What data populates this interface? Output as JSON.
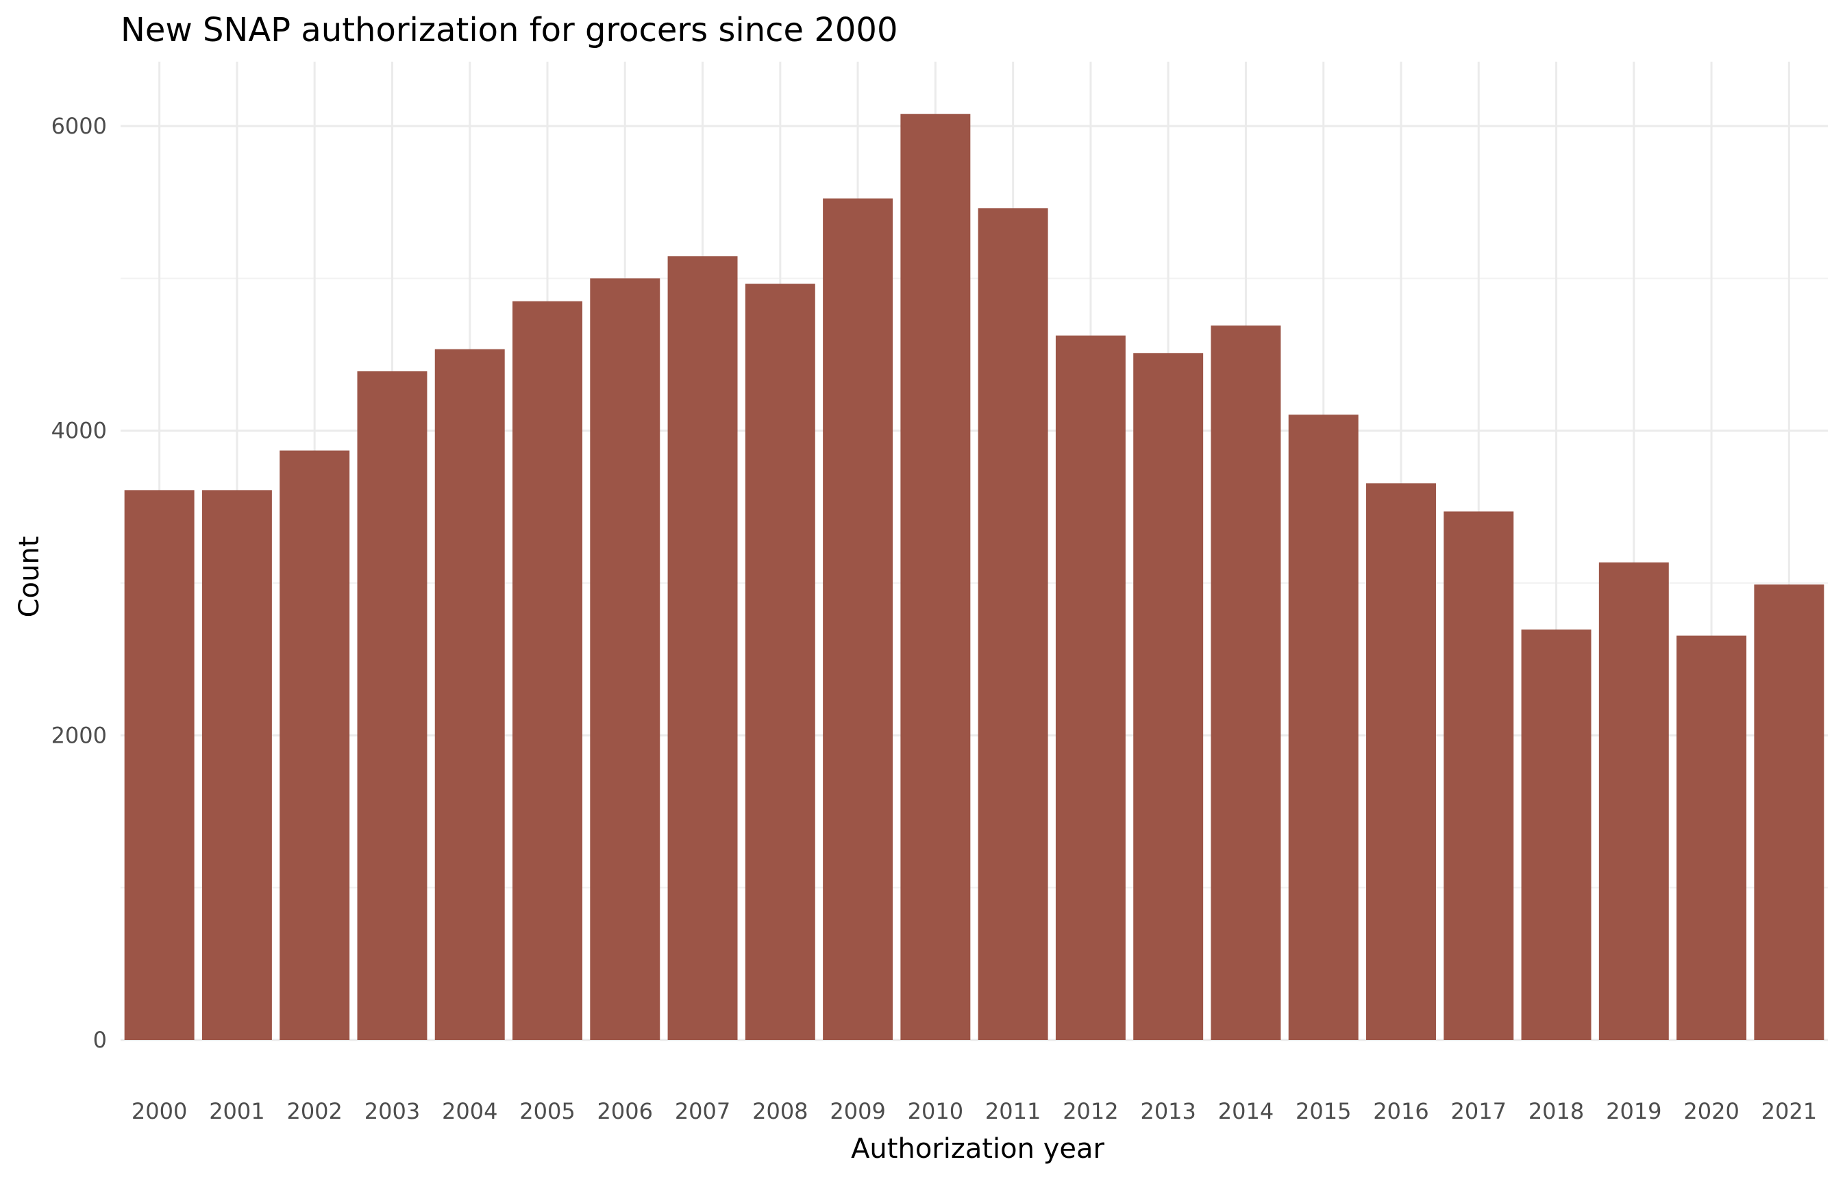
{
  "chart_data": {
    "type": "bar",
    "title": "New SNAP authorization for grocers since 2000",
    "xlabel": "Authorization year",
    "ylabel": "Count",
    "categories": [
      "2000",
      "2001",
      "2002",
      "2003",
      "2004",
      "2005",
      "2006",
      "2007",
      "2008",
      "2009",
      "2010",
      "2011",
      "2012",
      "2013",
      "2014",
      "2015",
      "2016",
      "2017",
      "2018",
      "2019",
      "2020",
      "2021"
    ],
    "values": [
      3610,
      3610,
      3870,
      4390,
      4535,
      4850,
      5000,
      5145,
      4965,
      5525,
      6080,
      5460,
      4625,
      4510,
      4690,
      4105,
      3655,
      3470,
      2695,
      3135,
      2655,
      2990
    ],
    "yticks": [
      0,
      2000,
      4000,
      6000
    ],
    "ylim": [
      0,
      6350
    ],
    "grid": true,
    "legend": "none",
    "bar_color": "#9c5547"
  }
}
